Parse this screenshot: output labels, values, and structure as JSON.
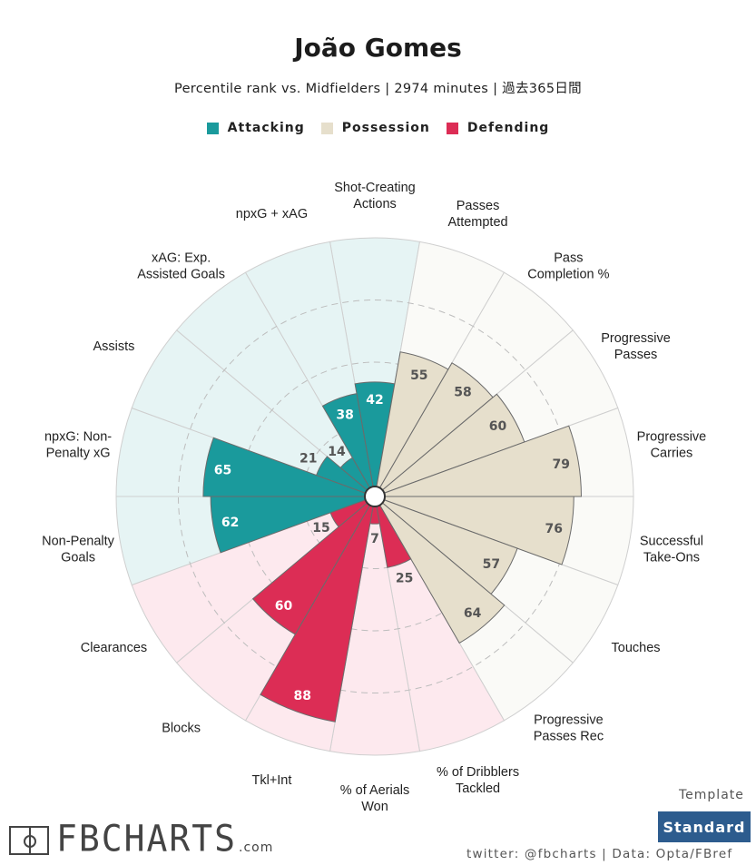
{
  "header": {
    "title": "João Gomes",
    "subtitle": "Percentile rank vs. Midfielders | 2974 minutes | 過去365日間"
  },
  "legend": {
    "items": [
      {
        "label": "Attacking",
        "color": "#1a9a9c"
      },
      {
        "label": "Possession",
        "color": "#e6dfcc"
      },
      {
        "label": "Defending",
        "color": "#dc2d55"
      }
    ]
  },
  "footer": {
    "template_label": "Template",
    "template_value": "Standard",
    "credit": "twitter: @fbcharts | Data: Opta/FBref",
    "logo_text": "FBCHARTS",
    "logo_suffix": ".com"
  },
  "colors": {
    "attacking_fill": "#1a9a9c",
    "attacking_bg": "#e6f4f4",
    "possession_fill": "#e6dfcc",
    "possession_bg": "#fafaf7",
    "defending_fill": "#dc2d55",
    "defending_bg": "#fde9ee"
  },
  "chart_data": {
    "type": "radial-bar",
    "title": "João Gomes",
    "scale": [
      0,
      100
    ],
    "grid_rings": [
      25,
      50,
      75
    ],
    "categories": [
      {
        "label": "Shot-Creating\nActions",
        "value": 42,
        "group": "Attacking"
      },
      {
        "label": "Passes\nAttempted",
        "value": 55,
        "group": "Possession"
      },
      {
        "label": "Pass\nCompletion %",
        "value": 58,
        "group": "Possession"
      },
      {
        "label": "Progressive\nPasses",
        "value": 60,
        "group": "Possession"
      },
      {
        "label": "Progressive\nCarries",
        "value": 79,
        "group": "Possession"
      },
      {
        "label": "Successful\nTake-Ons",
        "value": 76,
        "group": "Possession"
      },
      {
        "label": "Touches",
        "value": 57,
        "group": "Possession"
      },
      {
        "label": "Progressive\nPasses Rec",
        "value": 64,
        "group": "Possession"
      },
      {
        "label": "% of Dribblers\nTackled",
        "value": 25,
        "group": "Defending"
      },
      {
        "label": "% of Aerials\nWon",
        "value": 7,
        "group": "Defending"
      },
      {
        "label": "Tkl+Int",
        "value": 88,
        "group": "Defending"
      },
      {
        "label": "Blocks",
        "value": 60,
        "group": "Defending"
      },
      {
        "label": "Clearances",
        "value": 15,
        "group": "Defending"
      },
      {
        "label": "Non-Penalty\nGoals",
        "value": 62,
        "group": "Attacking"
      },
      {
        "label": "npxG: Non-\nPenalty xG",
        "value": 65,
        "group": "Attacking"
      },
      {
        "label": "Assists",
        "value": 21,
        "group": "Attacking"
      },
      {
        "label": "xAG: Exp.\nAssisted Goals",
        "value": 14,
        "group": "Attacking"
      },
      {
        "label": "npxG + xAG",
        "value": 38,
        "group": "Attacking"
      }
    ]
  }
}
